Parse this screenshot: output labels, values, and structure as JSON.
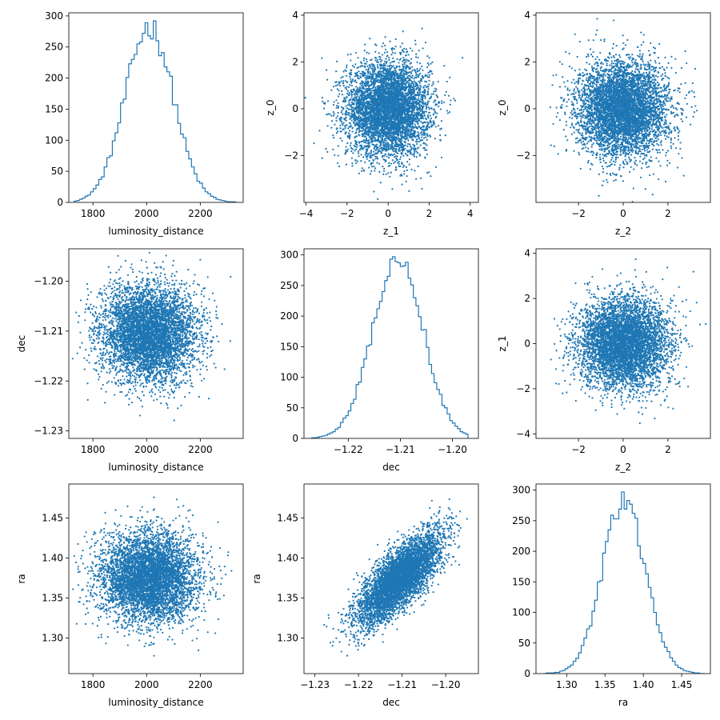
{
  "colors": {
    "series": "#1f77b4",
    "axis": "#000000",
    "background": "#ffffff"
  },
  "chart_data": [
    {
      "type": "histogram",
      "variable": "luminosity_distance",
      "xlabel": "luminosity_distance",
      "ylabel": "",
      "xlim": [
        1710,
        2360
      ],
      "ylim": [
        0,
        305
      ],
      "xticks": [
        1800,
        2000,
        2200
      ],
      "yticks": [
        0,
        50,
        100,
        150,
        200,
        250,
        300
      ],
      "stats": {
        "mean": 2010,
        "sd": 90,
        "peak_count": 292,
        "range": [
          1730,
          2340
        ]
      }
    },
    {
      "type": "scatter",
      "xvar": "z_1",
      "yvar": "z_0",
      "xlabel": "z_1",
      "ylabel": "z_0",
      "xlim": [
        -4.1,
        4.4
      ],
      "ylim": [
        -4.0,
        4.1
      ],
      "xticks": [
        -4,
        -2,
        0,
        2,
        4
      ],
      "yticks": [
        -2,
        0,
        2,
        4
      ],
      "stats": {
        "x_mean": 0,
        "x_sd": 1,
        "y_mean": 0,
        "y_sd": 1,
        "correlation": 0
      }
    },
    {
      "type": "scatter",
      "xvar": "z_2",
      "yvar": "z_0",
      "xlabel": "z_2",
      "ylabel": "z_0",
      "xlim": [
        -3.9,
        3.9
      ],
      "ylim": [
        -4.0,
        4.1
      ],
      "xticks": [
        -2,
        0,
        2
      ],
      "yticks": [
        -2,
        0,
        2,
        4
      ],
      "stats": {
        "x_mean": 0,
        "x_sd": 1,
        "y_mean": 0,
        "y_sd": 1,
        "correlation": 0
      }
    },
    {
      "type": "scatter",
      "xvar": "luminosity_distance",
      "yvar": "dec",
      "xlabel": "luminosity_distance",
      "ylabel": "dec",
      "xlim": [
        1710,
        2360
      ],
      "ylim": [
        -1.2315,
        -1.1935
      ],
      "xticks": [
        1800,
        2000,
        2200
      ],
      "yticks": [
        -1.23,
        -1.22,
        -1.21,
        -1.2
      ],
      "stats": {
        "x_mean": 2010,
        "x_sd": 90,
        "y_mean": -1.2105,
        "y_sd": 0.0048,
        "correlation": 0
      }
    },
    {
      "type": "histogram",
      "variable": "dec",
      "xlabel": "dec",
      "ylabel": "",
      "xlim": [
        -1.2285,
        -1.195
      ],
      "ylim": [
        0,
        310
      ],
      "xticks": [
        -1.22,
        -1.21,
        -1.2
      ],
      "yticks": [
        0,
        50,
        100,
        150,
        200,
        250,
        300
      ],
      "stats": {
        "mean": -1.2105,
        "sd": 0.0048,
        "peak_count": 297,
        "range": [
          -1.227,
          -1.197
        ]
      }
    },
    {
      "type": "scatter",
      "xvar": "z_2",
      "yvar": "z_1",
      "xlabel": "z_2",
      "ylabel": "z_1",
      "xlim": [
        -3.9,
        3.9
      ],
      "ylim": [
        -4.2,
        4.2
      ],
      "xticks": [
        -2,
        0,
        2
      ],
      "yticks": [
        -4,
        -2,
        0,
        2,
        4
      ],
      "stats": {
        "x_mean": 0,
        "x_sd": 1,
        "y_mean": 0,
        "y_sd": 1,
        "correlation": 0
      }
    },
    {
      "type": "scatter",
      "xvar": "luminosity_distance",
      "yvar": "ra",
      "xlabel": "luminosity_distance",
      "ylabel": "ra",
      "xlim": [
        1710,
        2360
      ],
      "ylim": [
        1.2555,
        1.4925
      ],
      "xticks": [
        1800,
        2000,
        2200
      ],
      "yticks": [
        1.3,
        1.35,
        1.4,
        1.45
      ],
      "stats": {
        "x_mean": 2010,
        "x_sd": 90,
        "y_mean": 1.375,
        "y_sd": 0.028,
        "correlation": 0
      }
    },
    {
      "type": "scatter",
      "xvar": "dec",
      "yvar": "ra",
      "xlabel": "dec",
      "ylabel": "ra",
      "xlim": [
        -1.2325,
        -1.1925
      ],
      "ylim": [
        1.2555,
        1.4925
      ],
      "xticks": [
        -1.23,
        -1.22,
        -1.21,
        -1.2
      ],
      "yticks": [
        1.3,
        1.35,
        1.4,
        1.45
      ],
      "stats": {
        "x_mean": -1.2105,
        "x_sd": 0.0048,
        "y_mean": 1.375,
        "y_sd": 0.028,
        "correlation": 0.75
      }
    },
    {
      "type": "histogram",
      "variable": "ra",
      "xlabel": "ra",
      "ylabel": "",
      "xlim": [
        1.26,
        1.4875
      ],
      "ylim": [
        0,
        310
      ],
      "xticks": [
        1.3,
        1.35,
        1.4,
        1.45
      ],
      "yticks": [
        0,
        50,
        100,
        150,
        200,
        250,
        300
      ],
      "stats": {
        "mean": 1.375,
        "sd": 0.028,
        "peak_count": 297,
        "range": [
          1.27,
          1.48
        ]
      }
    }
  ]
}
